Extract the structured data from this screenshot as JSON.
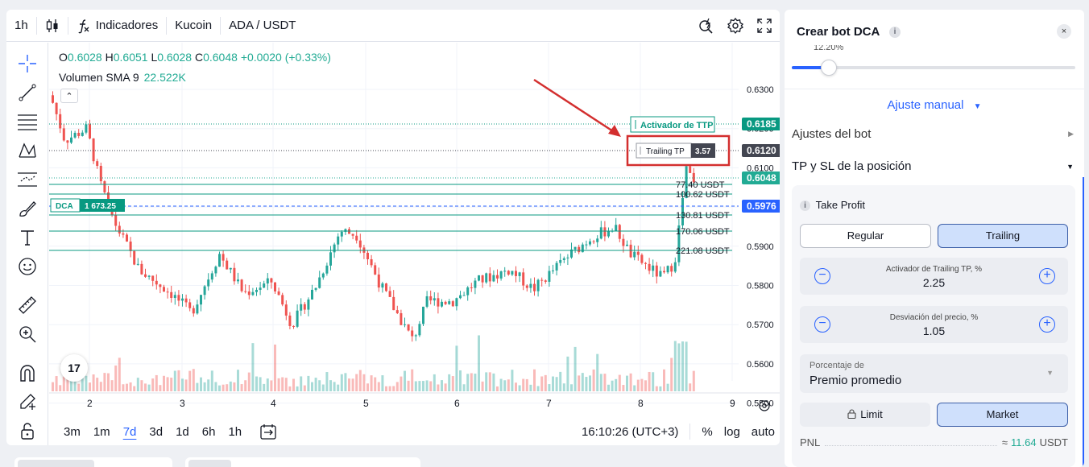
{
  "toolbar": {
    "interval": "1h",
    "indicators_label": "Indicadores",
    "exchange": "Kucoin",
    "pair": "ADA / USDT"
  },
  "legend": {
    "o_key": "O",
    "o_val": "0.6028",
    "h_key": "H",
    "h_val": "0.6051",
    "l_key": "L",
    "l_val": "0.6028",
    "c_key": "C",
    "c_val": "0.6048",
    "change": "+0.0020 (+0.33%)",
    "volume_label": "Volumen SMA 9",
    "volume_value": "22.522K"
  },
  "chart_data": {
    "type": "candlestick",
    "price_axis_ticks": [
      "0.6300",
      "0.6200",
      "0.6100",
      "0.6000",
      "0.5900",
      "0.5800",
      "0.5700",
      "0.5600",
      "0.5500"
    ],
    "time_axis_ticks": [
      "2",
      "3",
      "4",
      "5",
      "6",
      "7",
      "8",
      "9"
    ],
    "price_tags": [
      {
        "text": "0.6185",
        "color": "#089981"
      },
      {
        "text": "0.6120",
        "color": "#434651"
      },
      {
        "text": "0.6048",
        "color": "#22ab94"
      },
      {
        "text": "0.5976",
        "color": "#2962ff"
      }
    ],
    "order_lines": [
      {
        "label": "77.40 USDT"
      },
      {
        "label": "100.62 USDT"
      },
      {
        "label": "130.81 USDT"
      },
      {
        "label": "170.06 USDT"
      },
      {
        "label": "221.08 USDT"
      }
    ],
    "dca_label": "DCA",
    "dca_value": "1 673.25",
    "ttp_activator_label": "Activador de TTP",
    "trailing_tp_label": "Trailing TP",
    "trailing_tp_value": "3.57"
  },
  "bottombar": {
    "ranges": [
      "3m",
      "1m",
      "7d",
      "3d",
      "1d",
      "6h",
      "1h"
    ],
    "active_range": "7d",
    "clock": "16:10:26 (UTC+3)",
    "percent": "%",
    "log": "log",
    "auto": "auto"
  },
  "bot": {
    "title": "Crear bot DCA",
    "slider_label": "12.20%",
    "slider_fraction": 0.13,
    "manual_label": "Ajuste manual",
    "bot_settings": "Ajustes del bot",
    "tp_sl": "TP y SL de la posición",
    "take_profit": "Take Profit",
    "regular": "Regular",
    "trailing": "Trailing",
    "ttp_activator_label": "Activador de Trailing TP, %",
    "ttp_activator_value": "2.25",
    "deviation_label": "Desviación del precio, %",
    "deviation_value": "1.05",
    "select_label": "Porcentaje de",
    "select_value": "Premio promedio",
    "limit": "Limit",
    "market": "Market",
    "pnl_label": "PNL",
    "pnl_approx": "≈",
    "pnl_value": "11.64",
    "pnl_unit": "USDT"
  },
  "colors": {
    "up": "#26a69a",
    "down": "#ef5350",
    "accent": "#2962ff",
    "green_line": "#089981",
    "annotation_red": "#d32f2f"
  }
}
